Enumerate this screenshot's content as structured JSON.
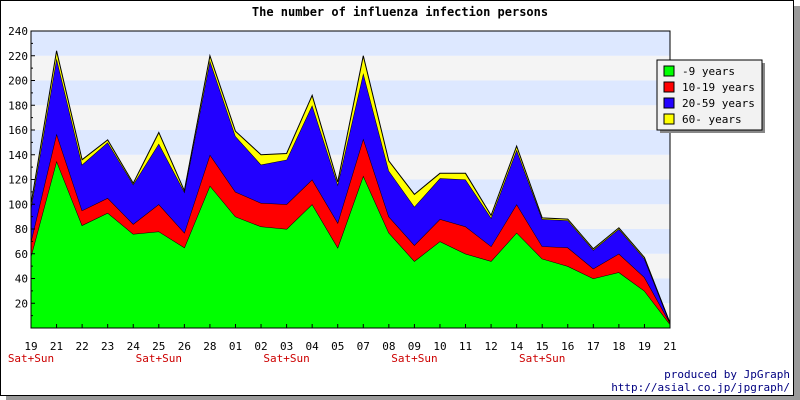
{
  "chart_data": {
    "type": "area",
    "title": "The number of influenza infection persons",
    "stacked": true,
    "x": [
      "19",
      "21",
      "22",
      "23",
      "24",
      "25",
      "26",
      "28",
      "01",
      "02",
      "03",
      "04",
      "05",
      "07",
      "08",
      "09",
      "10",
      "11",
      "12",
      "14",
      "15",
      "16",
      "17",
      "18",
      "19",
      "21"
    ],
    "x_sublabels": [
      "Sat+Sun",
      "",
      "",
      "",
      "",
      "Sat+Sun",
      "",
      "",
      "",
      "",
      "Sat+Sun",
      "",
      "",
      "",
      "",
      "Sat+Sun",
      "",
      "",
      "",
      "",
      "Sat+Sun",
      "",
      "",
      "",
      "",
      ""
    ],
    "ylim": [
      0,
      240
    ],
    "yticks": [
      20,
      40,
      60,
      80,
      100,
      120,
      140,
      160,
      180,
      200,
      220,
      240
    ],
    "series": [
      {
        "name": "-9 years",
        "color": "#00ff00",
        "values": [
          58,
          135,
          83,
          93,
          76,
          78,
          65,
          115,
          90,
          82,
          80,
          100,
          65,
          123,
          77,
          54,
          70,
          60,
          54,
          77,
          56,
          50,
          40,
          45,
          30,
          3
        ]
      },
      {
        "name": "10-19 years",
        "color": "#ff0000",
        "values": [
          12,
          22,
          12,
          12,
          8,
          22,
          12,
          25,
          20,
          19,
          20,
          20,
          20,
          30,
          13,
          13,
          18,
          22,
          12,
          23,
          10,
          15,
          8,
          15,
          11,
          1
        ]
      },
      {
        "name": "20-59 years",
        "color": "#2200ff",
        "values": [
          27,
          61,
          37,
          45,
          32,
          49,
          33,
          76,
          45,
          31,
          36,
          60,
          31,
          53,
          37,
          31,
          33,
          38,
          23,
          44,
          22,
          22,
          15,
          20,
          15,
          0
        ]
      },
      {
        "name": "60- years",
        "color": "#ffff00",
        "values": [
          3,
          6,
          4,
          2,
          1,
          9,
          1,
          4,
          4,
          8,
          5,
          8,
          2,
          14,
          8,
          10,
          4,
          5,
          2,
          3,
          1,
          1,
          1,
          1,
          1,
          0
        ]
      }
    ],
    "legend_position": "right",
    "grid": true
  },
  "credits": {
    "line1": "produced by JpGraph",
    "line2": "http://asial.co.jp/jpgraph/"
  }
}
